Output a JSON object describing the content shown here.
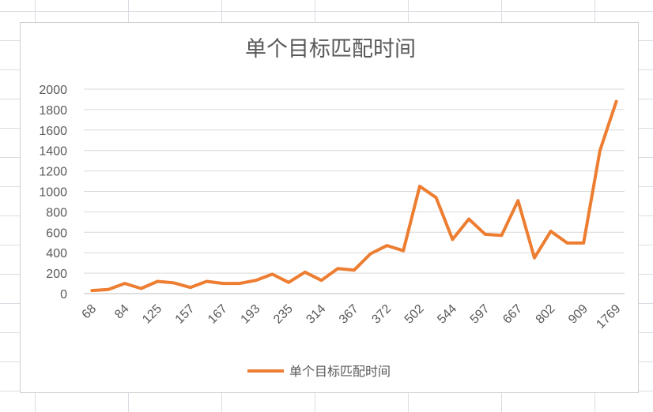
{
  "chart_data": {
    "type": "line",
    "title": "单个目标匹配时间",
    "xlabel": "",
    "ylabel": "",
    "ylim": [
      0,
      2000
    ],
    "y_ticks": [
      0,
      200,
      400,
      600,
      800,
      1000,
      1200,
      1400,
      1600,
      1800,
      2000
    ],
    "x_tick_labels": [
      "68",
      "84",
      "125",
      "157",
      "167",
      "193",
      "235",
      "314",
      "367",
      "372",
      "502",
      "544",
      "597",
      "667",
      "802",
      "909",
      "1769"
    ],
    "grid": true,
    "legend_position": "bottom",
    "series": [
      {
        "name": "单个目标匹配时间",
        "color": "#ed7d31",
        "values": [
          30,
          40,
          100,
          50,
          120,
          105,
          60,
          120,
          100,
          100,
          130,
          190,
          110,
          210,
          130,
          245,
          230,
          390,
          470,
          420,
          1050,
          940,
          530,
          730,
          580,
          570,
          910,
          350,
          610,
          495,
          495,
          1400,
          1880
        ]
      }
    ]
  }
}
